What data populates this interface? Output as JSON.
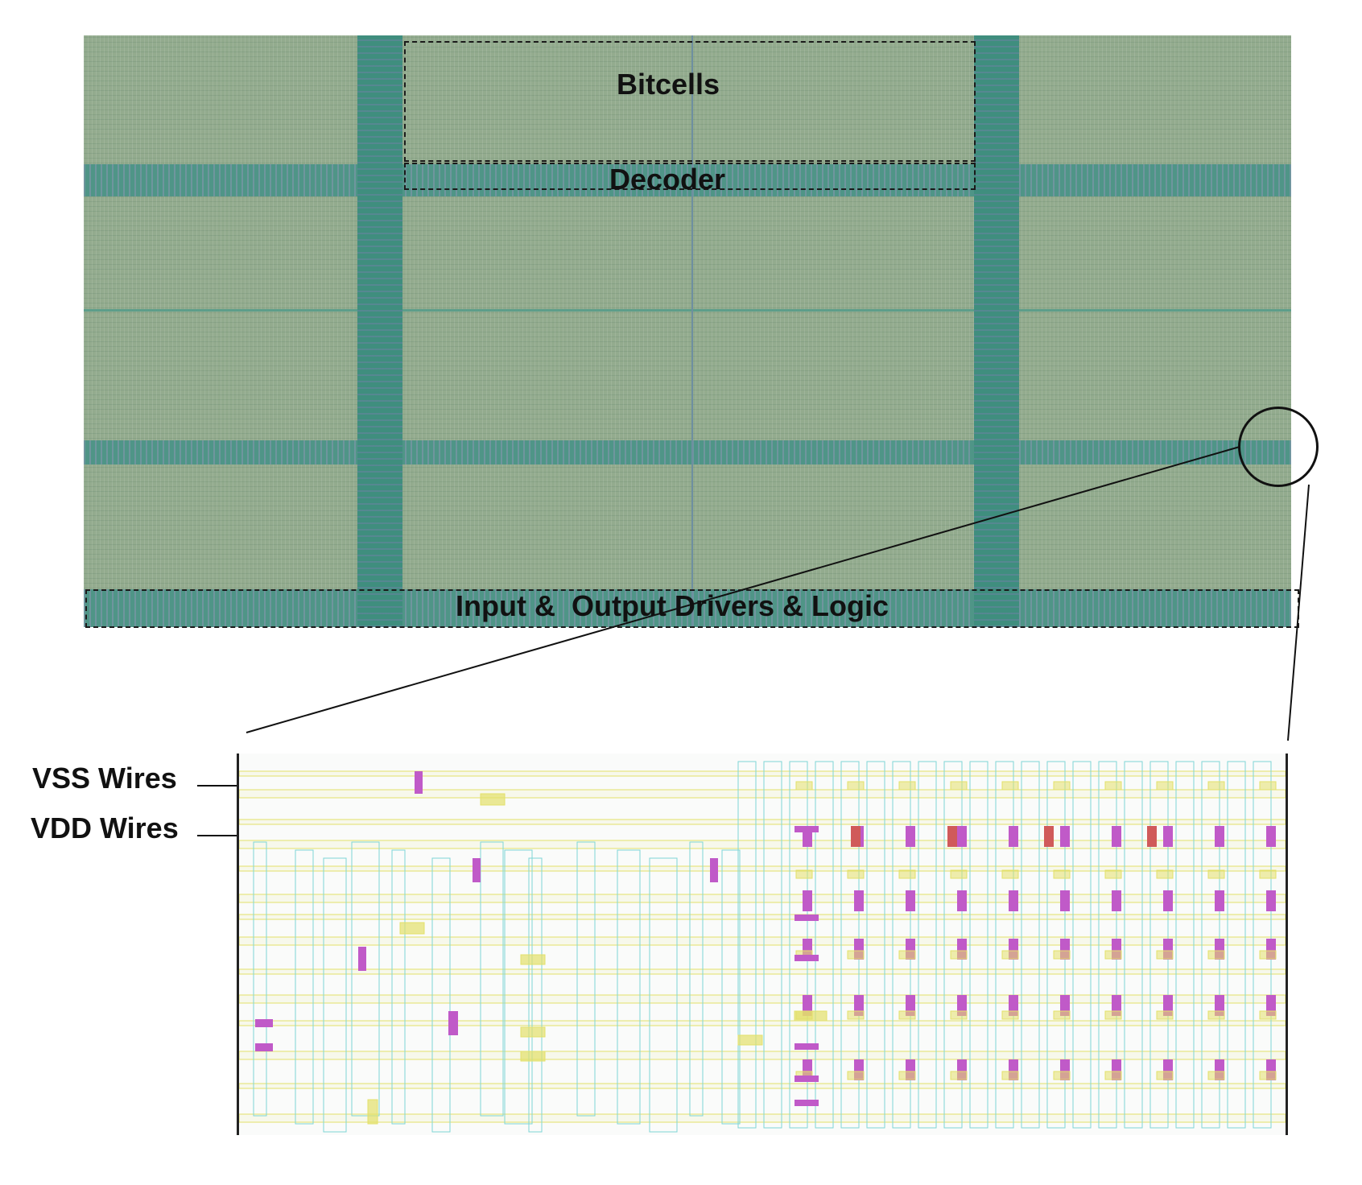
{
  "labels": {
    "bitcells": "Bitcells",
    "decoder": "Decoder",
    "io": "Input &  Output Drivers & Logic",
    "vss": "VSS Wires",
    "vdd": "VDD Wires"
  },
  "colors": {
    "array_fill": "#93ab8e",
    "band": "#4f9587",
    "wire_cyan": "#7fd6d6",
    "wire_yellow": "#e3e06a",
    "via_magenta": "#c05ac8",
    "via_red": "#d05a5a"
  }
}
